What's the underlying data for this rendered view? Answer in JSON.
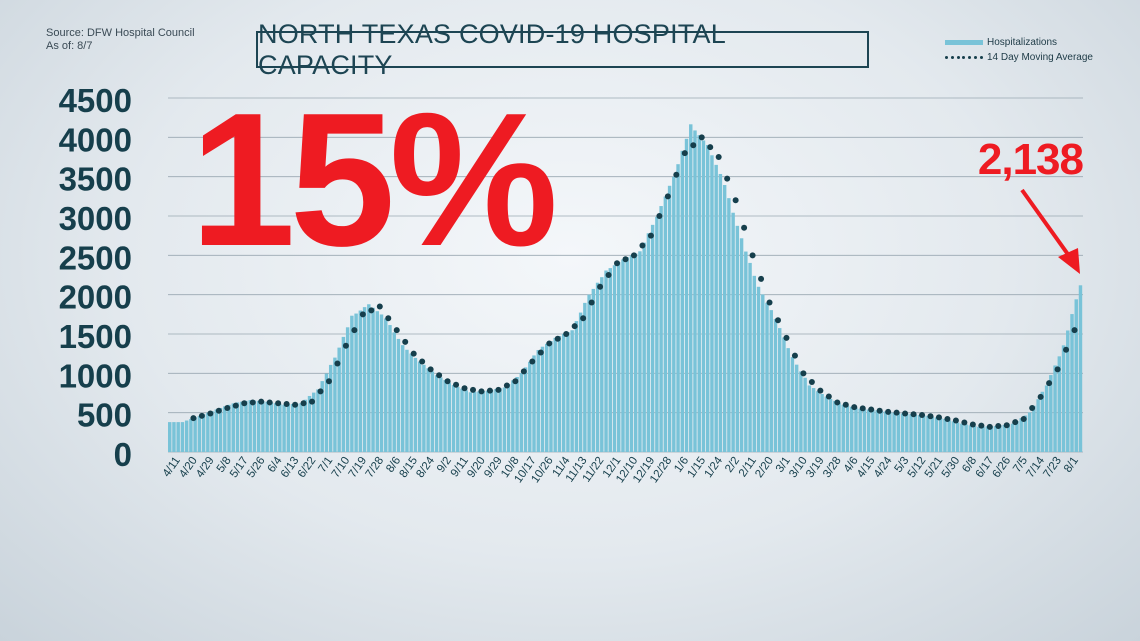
{
  "source": {
    "line1": "Source: DFW Hospital Council",
    "line2": "As of: 8/7"
  },
  "title": "NORTH TEXAS COVID-19 HOSPITAL CAPACITY",
  "legend": {
    "bar_label": "Hospitalizations",
    "avg_label": "14 Day Moving Average"
  },
  "callouts": {
    "percent": "15%",
    "latest": "2,138"
  },
  "colors": {
    "bars": "#79c3d8",
    "dots": "#163f4c",
    "axis_text": "#163f4c",
    "callout": "#ee1b22",
    "title": "#1d4553"
  },
  "chart_data": {
    "type": "bar",
    "title": "NORTH TEXAS COVID-19 HOSPITAL CAPACITY",
    "xlabel": "",
    "ylabel": "",
    "ylim": [
      0,
      4500
    ],
    "yticks": [
      0,
      500,
      1000,
      1500,
      2000,
      2500,
      3000,
      3500,
      4000,
      4500
    ],
    "grid": true,
    "legend_position": "top-right",
    "x_tick_labels": [
      "4/11",
      "4/20",
      "4/29",
      "5/8",
      "5/17",
      "5/26",
      "6/4",
      "6/13",
      "6/22",
      "7/1",
      "7/10",
      "7/19",
      "7/28",
      "8/6",
      "8/15",
      "8/24",
      "9/2",
      "9/11",
      "9/20",
      "9/29",
      "10/8",
      "10/17",
      "10/26",
      "11/4",
      "11/13",
      "11/22",
      "12/1",
      "12/10",
      "12/19",
      "12/28",
      "1/6",
      "1/15",
      "1/24",
      "2/2",
      "2/11",
      "2/20",
      "3/1",
      "3/10",
      "3/19",
      "3/28",
      "4/6",
      "4/15",
      "4/24",
      "5/3",
      "5/12",
      "5/21",
      "5/30",
      "6/8",
      "6/17",
      "6/26",
      "7/5",
      "7/14",
      "7/23",
      "8/1"
    ],
    "series": [
      {
        "name": "Hospitalizations",
        "type": "bar",
        "values": [
          380,
          460,
          540,
          620,
          660,
          640,
          600,
          620,
          800,
          1200,
          1720,
          1880,
          1700,
          1350,
          1150,
          980,
          850,
          760,
          780,
          820,
          1000,
          1300,
          1450,
          1550,
          2000,
          2300,
          2450,
          2550,
          3000,
          3500,
          4150,
          3900,
          3400,
          2700,
          2100,
          1700,
          1200,
          850,
          700,
          600,
          550,
          530,
          500,
          480,
          460,
          420,
          360,
          320,
          330,
          360,
          500,
          850,
          1350,
          2138
        ]
      },
      {
        "name": "14 Day Moving Average",
        "type": "dotted-line",
        "values": [
          null,
          430,
          490,
          560,
          620,
          640,
          620,
          600,
          640,
          900,
          1350,
          1750,
          1850,
          1550,
          1250,
          1050,
          900,
          810,
          770,
          790,
          900,
          1150,
          1380,
          1500,
          1700,
          2100,
          2400,
          2500,
          2750,
          3250,
          3800,
          4000,
          3750,
          3200,
          2500,
          1900,
          1450,
          1000,
          780,
          630,
          570,
          540,
          510,
          490,
          470,
          440,
          400,
          350,
          320,
          340,
          420,
          700,
          1050,
          1550
        ]
      }
    ],
    "annotations": [
      "15%",
      "2,138"
    ]
  }
}
